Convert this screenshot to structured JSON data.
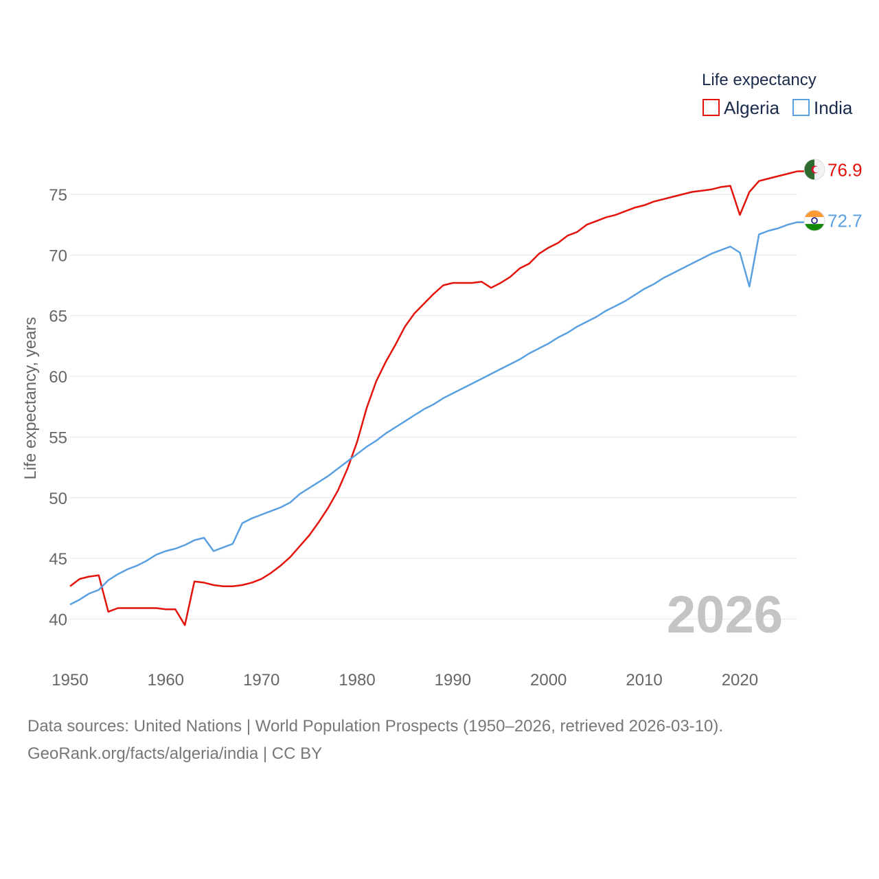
{
  "chart_data": {
    "type": "line",
    "title": "",
    "xlabel": "",
    "ylabel": "Life expectancy, years",
    "xlim": [
      1950,
      2026
    ],
    "ylim": [
      37.5,
      78
    ],
    "x_ticks": [
      1950,
      1960,
      1970,
      1980,
      1990,
      2000,
      2010,
      2020
    ],
    "y_ticks": [
      40,
      45,
      50,
      55,
      60,
      65,
      70,
      75
    ],
    "grid": true,
    "legend": {
      "title": "Life expectancy",
      "position": "top-right"
    },
    "year_overlay": "2026",
    "x": [
      1950,
      1951,
      1952,
      1953,
      1954,
      1955,
      1956,
      1957,
      1958,
      1959,
      1960,
      1961,
      1962,
      1963,
      1964,
      1965,
      1966,
      1967,
      1968,
      1969,
      1970,
      1971,
      1972,
      1973,
      1974,
      1975,
      1976,
      1977,
      1978,
      1979,
      1980,
      1981,
      1982,
      1983,
      1984,
      1985,
      1986,
      1987,
      1988,
      1989,
      1990,
      1991,
      1992,
      1993,
      1994,
      1995,
      1996,
      1997,
      1998,
      1999,
      2000,
      2001,
      2002,
      2003,
      2004,
      2005,
      2006,
      2007,
      2008,
      2009,
      2010,
      2011,
      2012,
      2013,
      2014,
      2015,
      2016,
      2017,
      2018,
      2019,
      2020,
      2021,
      2022,
      2023,
      2024,
      2025,
      2026
    ],
    "series": [
      {
        "name": "Algeria",
        "color": "#e3120b",
        "end_label": "76.9",
        "flag": "algeria-flag-icon",
        "values": [
          42.7,
          43.3,
          43.5,
          43.6,
          40.6,
          40.9,
          40.9,
          40.9,
          40.9,
          40.9,
          40.8,
          40.8,
          39.5,
          43.1,
          43.0,
          42.8,
          42.7,
          42.7,
          42.8,
          43.0,
          43.3,
          43.8,
          44.4,
          45.1,
          46.0,
          46.9,
          48.0,
          49.2,
          50.6,
          52.4,
          54.6,
          57.4,
          59.6,
          61.2,
          62.6,
          64.1,
          65.2,
          66.0,
          66.8,
          67.5,
          67.7,
          67.7,
          67.7,
          67.8,
          67.3,
          67.7,
          68.2,
          68.9,
          69.3,
          70.1,
          70.6,
          71.0,
          71.6,
          71.9,
          72.5,
          72.8,
          73.1,
          73.3,
          73.6,
          73.9,
          74.1,
          74.4,
          74.6,
          74.8,
          75.0,
          75.2,
          75.3,
          75.4,
          75.6,
          75.7,
          73.3,
          75.2,
          76.1,
          76.3,
          76.5,
          76.7,
          76.9
        ]
      },
      {
        "name": "India",
        "color": "#5aa0e0",
        "end_label": "72.7",
        "flag": "india-flag-icon",
        "values": [
          41.2,
          41.6,
          42.1,
          42.4,
          43.2,
          43.7,
          44.1,
          44.4,
          44.8,
          45.3,
          45.6,
          45.8,
          46.1,
          46.5,
          46.7,
          45.6,
          45.9,
          46.2,
          47.9,
          48.3,
          48.6,
          48.9,
          49.2,
          49.6,
          50.3,
          50.8,
          51.3,
          51.8,
          52.4,
          53.0,
          53.6,
          54.2,
          54.7,
          55.3,
          55.8,
          56.3,
          56.8,
          57.3,
          57.7,
          58.2,
          58.6,
          59.0,
          59.4,
          59.8,
          60.2,
          60.6,
          61.0,
          61.4,
          61.9,
          62.3,
          62.7,
          63.2,
          63.6,
          64.1,
          64.5,
          64.9,
          65.4,
          65.8,
          66.2,
          66.7,
          67.2,
          67.6,
          68.1,
          68.5,
          68.9,
          69.3,
          69.7,
          70.1,
          70.4,
          70.7,
          70.2,
          67.4,
          71.7,
          72.0,
          72.2,
          72.5,
          72.7
        ]
      }
    ]
  },
  "footer": {
    "source_line": "Data sources: United Nations | World Population Prospects (1950–2026, retrieved 2026-03-10).",
    "credit_line": "GeoRank.org/facts/algeria/india | CC BY"
  }
}
